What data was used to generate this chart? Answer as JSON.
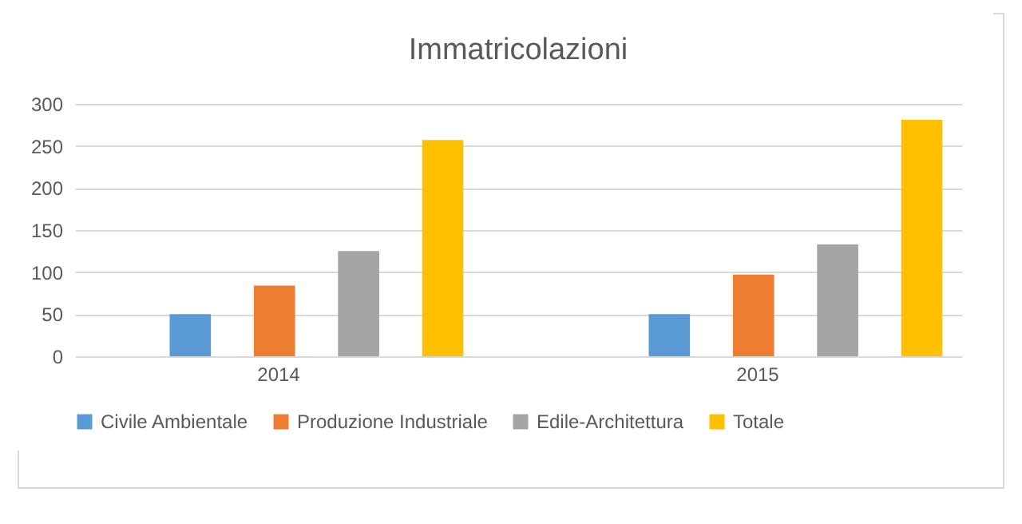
{
  "chart_data": {
    "type": "bar",
    "title": "Immatricolazioni",
    "categories": [
      "2014",
      "2015"
    ],
    "series": [
      {
        "name": "Civile Ambientale",
        "color": "#5b9bd5",
        "values": [
          50,
          50
        ]
      },
      {
        "name": "Produzione Industriale",
        "color": "#ed7d31",
        "values": [
          84,
          97
        ]
      },
      {
        "name": "Edile-Architettura",
        "color": "#a5a5a5",
        "values": [
          125,
          133
        ]
      },
      {
        "name": "Totale",
        "color": "#ffc000",
        "values": [
          257,
          281
        ]
      }
    ],
    "ylim": [
      0,
      300
    ],
    "yticks": [
      0,
      50,
      100,
      150,
      200,
      250,
      300
    ],
    "grid": "y",
    "legend": "bottom"
  }
}
